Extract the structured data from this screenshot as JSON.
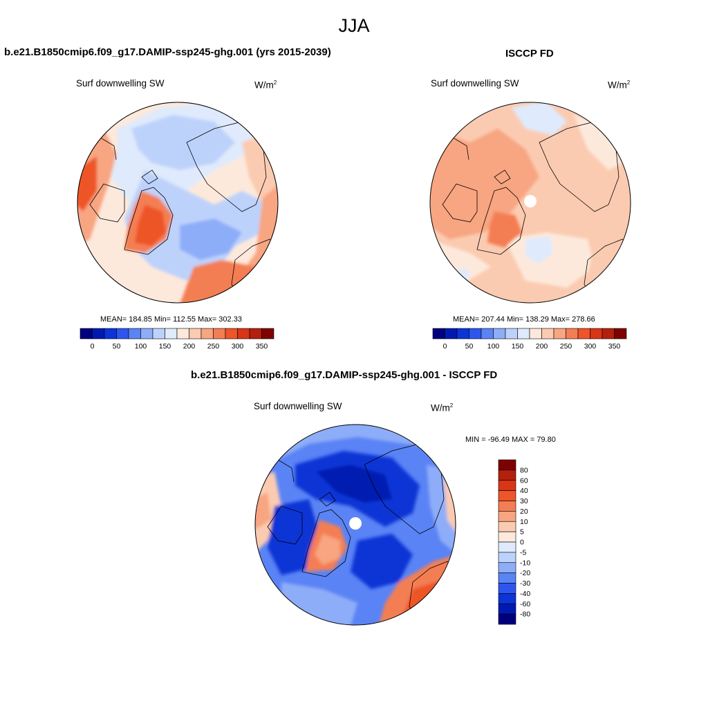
{
  "page_title": "JJA",
  "top_left": {
    "case_title": "b.e21.B1850cmip6.f09_g17.DAMIP-ssp245-ghg.001 (yrs 2015-2039)",
    "variable": "Surf downwelling SW",
    "units_base": "W/m",
    "units_exp": "2",
    "stats": "MEAN= 184.85  Min= 112.55  Max= 302.33"
  },
  "top_right": {
    "case_title": "ISCCP FD",
    "variable": "Surf downwelling SW",
    "units_base": "W/m",
    "units_exp": "2",
    "stats": "MEAN= 207.44  Min= 138.29  Max= 278.66"
  },
  "bottom": {
    "case_title": "b.e21.B1850cmip6.f09_g17.DAMIP-ssp245-ghg.001 - ISCCP FD",
    "variable": "Surf downwelling SW",
    "units_base": "W/m",
    "units_exp": "2",
    "minmax": "MIN = -96.49 MAX =  79.80"
  },
  "colorbar_abs": {
    "colors": [
      "#00007f",
      "#001ab1",
      "#0c34d6",
      "#2f55ef",
      "#5a83f5",
      "#8eadf9",
      "#bdd2fb",
      "#dfeafc",
      "#fde9dc",
      "#fbcbb1",
      "#f8a581",
      "#f47e53",
      "#ee5528",
      "#d83616",
      "#b3200c",
      "#7f0000"
    ],
    "labels": [
      "0",
      "50",
      "100",
      "150",
      "200",
      "250",
      "300",
      "350"
    ]
  },
  "colorbar_diff": {
    "colors": [
      "#7f0000",
      "#b3200c",
      "#d83616",
      "#ee5528",
      "#f47e53",
      "#f8a581",
      "#fbcbb1",
      "#fde9dc",
      "#dfeafc",
      "#bdd2fb",
      "#8eadf9",
      "#5a83f5",
      "#2f55ef",
      "#0c34d6",
      "#001ab1",
      "#00007f"
    ],
    "labels": [
      "80",
      "60",
      "40",
      "30",
      "20",
      "10",
      "5",
      "0",
      "-5",
      "-10",
      "-20",
      "-30",
      "-40",
      "-60",
      "-80"
    ]
  }
}
